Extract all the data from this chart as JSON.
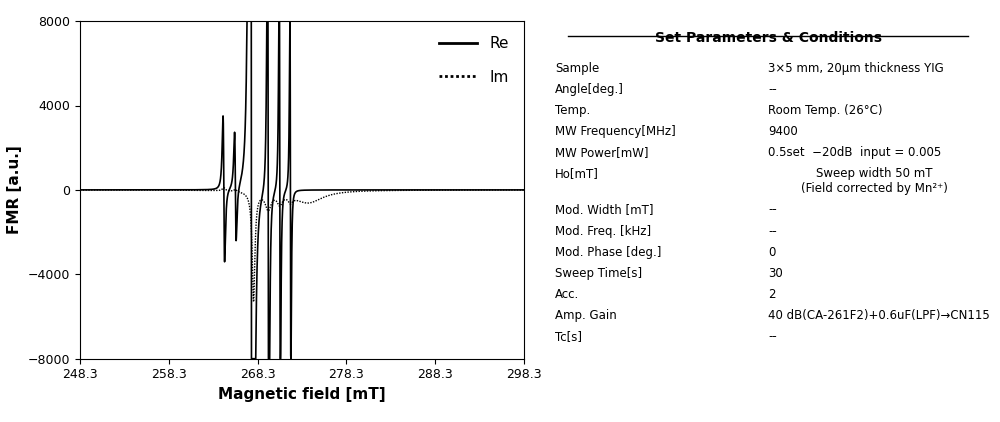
{
  "title": "Set Parameters & Conditions",
  "xlabel": "Magnetic field [mT]",
  "ylabel": "FMR [a.u.]",
  "xlim": [
    248.3,
    298.3
  ],
  "ylim": [
    -8000,
    8000
  ],
  "xticks": [
    248.3,
    258.3,
    268.3,
    278.3,
    288.3,
    298.3
  ],
  "yticks": [
    -8000,
    -4000,
    0,
    4000,
    8000
  ],
  "legend_re": "Re",
  "legend_im": "Im",
  "params": [
    [
      "Sample",
      "3×5 mm, 20μm thickness YIG"
    ],
    [
      "Angle[deg.]",
      "--"
    ],
    [
      "Temp.",
      "Room Temp. (26°C)"
    ],
    [
      "MW Frequency[MHz]",
      "9400"
    ],
    [
      "MW Power[mW]",
      "0.5set  −20dB  input = 0.005"
    ],
    [
      "Ho[mT]",
      "Sweep width 50 mT\n(Field corrected by Mn²⁺)"
    ],
    [
      "Mod. Width [mT]",
      "--"
    ],
    [
      "Mod. Freq. [kHz]",
      "--"
    ],
    [
      "Mod. Phase [deg.]",
      "0"
    ],
    [
      "Sweep Time[s]",
      "30"
    ],
    [
      "Acc.",
      "2"
    ],
    [
      "Amp. Gain",
      "40 dB(CA-261F2)+0.6uF(LPF)→CN115"
    ],
    [
      "Tc[s]",
      "--"
    ]
  ]
}
